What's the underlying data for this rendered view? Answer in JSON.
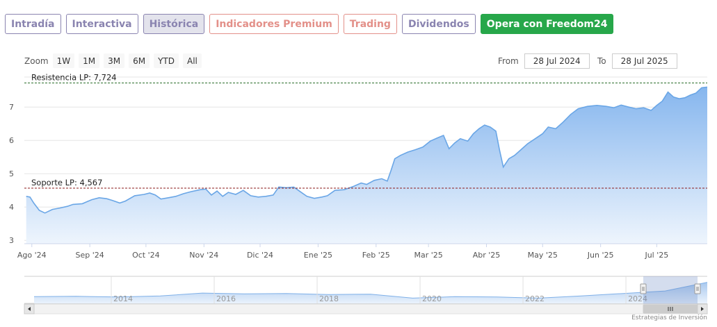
{
  "tabs": [
    {
      "label": "Intradía",
      "style": "c-purple"
    },
    {
      "label": "Interactiva",
      "style": "c-purple"
    },
    {
      "label": "Histórica",
      "style": "c-active"
    },
    {
      "label": "Indicadores Premium",
      "style": "c-red"
    },
    {
      "label": "Trading",
      "style": "c-red"
    },
    {
      "label": "Dividendos",
      "style": "c-purple"
    },
    {
      "label": "Opera con Freedom24",
      "style": "c-green"
    }
  ],
  "zoom": {
    "label": "Zoom",
    "buttons": [
      "1W",
      "1M",
      "3M",
      "6M",
      "YTD",
      "All"
    ]
  },
  "dates": {
    "from_label": "From",
    "from_value": "28 Jul 2024",
    "to_label": "To",
    "to_value": "28 Jul 2025"
  },
  "credit": "Estrategias de Inversión",
  "colors": {
    "line": "#6aa6e6",
    "fill_top": "#86b6ee",
    "fill_bottom": "#eef5fd",
    "resistance": "#2a6e2a",
    "support": "#8b1a1a"
  },
  "chart_data": {
    "type": "area",
    "title": "",
    "ylim": [
      2.9,
      7.9
    ],
    "yticks": [
      3,
      4,
      5,
      6,
      7
    ],
    "xticks": [
      "Ago '24",
      "Sep '24",
      "Oct '24",
      "Nov '24",
      "Dic '24",
      "Ene '25",
      "Feb '25",
      "Mar '25",
      "Abr '25",
      "May '25",
      "Jun '25",
      "Jul '25"
    ],
    "x_range": [
      "2024-07-28",
      "2025-07-28"
    ],
    "series": [
      {
        "points": [
          [
            "2024-07-29",
            4.32
          ],
          [
            "2024-07-31",
            4.3
          ],
          [
            "2024-08-02",
            4.12
          ],
          [
            "2024-08-05",
            3.9
          ],
          [
            "2024-08-08",
            3.82
          ],
          [
            "2024-08-12",
            3.93
          ],
          [
            "2024-08-16",
            3.97
          ],
          [
            "2024-08-20",
            4.02
          ],
          [
            "2024-08-23",
            4.08
          ],
          [
            "2024-08-28",
            4.1
          ],
          [
            "2024-09-02",
            4.22
          ],
          [
            "2024-09-06",
            4.28
          ],
          [
            "2024-09-10",
            4.25
          ],
          [
            "2024-09-13",
            4.2
          ],
          [
            "2024-09-17",
            4.12
          ],
          [
            "2024-09-20",
            4.18
          ],
          [
            "2024-09-25",
            4.34
          ],
          [
            "2024-09-30",
            4.38
          ],
          [
            "2024-10-03",
            4.42
          ],
          [
            "2024-10-06",
            4.36
          ],
          [
            "2024-10-09",
            4.24
          ],
          [
            "2024-10-13",
            4.28
          ],
          [
            "2024-10-17",
            4.32
          ],
          [
            "2024-10-21",
            4.4
          ],
          [
            "2024-10-25",
            4.46
          ],
          [
            "2024-10-30",
            4.52
          ],
          [
            "2024-11-02",
            4.54
          ],
          [
            "2024-11-05",
            4.36
          ],
          [
            "2024-11-08",
            4.48
          ],
          [
            "2024-11-11",
            4.32
          ],
          [
            "2024-11-14",
            4.44
          ],
          [
            "2024-11-18",
            4.38
          ],
          [
            "2024-11-22",
            4.5
          ],
          [
            "2024-11-26",
            4.34
          ],
          [
            "2024-11-30",
            4.3
          ],
          [
            "2024-12-04",
            4.32
          ],
          [
            "2024-12-08",
            4.36
          ],
          [
            "2024-12-11",
            4.6
          ],
          [
            "2024-12-15",
            4.58
          ],
          [
            "2024-12-19",
            4.6
          ],
          [
            "2024-12-22",
            4.48
          ],
          [
            "2024-12-26",
            4.32
          ],
          [
            "2024-12-30",
            4.26
          ],
          [
            "2025-01-03",
            4.3
          ],
          [
            "2025-01-06",
            4.34
          ],
          [
            "2025-01-10",
            4.5
          ],
          [
            "2025-01-15",
            4.52
          ],
          [
            "2025-01-20",
            4.62
          ],
          [
            "2025-01-24",
            4.72
          ],
          [
            "2025-01-27",
            4.68
          ],
          [
            "2025-01-31",
            4.8
          ],
          [
            "2025-02-04",
            4.85
          ],
          [
            "2025-02-07",
            4.78
          ],
          [
            "2025-02-09",
            5.1
          ],
          [
            "2025-02-11",
            5.45
          ],
          [
            "2025-02-14",
            5.55
          ],
          [
            "2025-02-18",
            5.65
          ],
          [
            "2025-02-22",
            5.72
          ],
          [
            "2025-02-26",
            5.8
          ],
          [
            "2025-03-02",
            5.98
          ],
          [
            "2025-03-06",
            6.08
          ],
          [
            "2025-03-09",
            6.15
          ],
          [
            "2025-03-12",
            5.75
          ],
          [
            "2025-03-15",
            5.92
          ],
          [
            "2025-03-18",
            6.05
          ],
          [
            "2025-03-22",
            5.98
          ],
          [
            "2025-03-25",
            6.2
          ],
          [
            "2025-03-28",
            6.35
          ],
          [
            "2025-03-31",
            6.46
          ],
          [
            "2025-04-03",
            6.4
          ],
          [
            "2025-04-06",
            6.28
          ],
          [
            "2025-04-08",
            5.7
          ],
          [
            "2025-04-10",
            5.2
          ],
          [
            "2025-04-13",
            5.45
          ],
          [
            "2025-04-16",
            5.55
          ],
          [
            "2025-04-19",
            5.7
          ],
          [
            "2025-04-23",
            5.9
          ],
          [
            "2025-04-27",
            6.05
          ],
          [
            "2025-05-01",
            6.2
          ],
          [
            "2025-05-04",
            6.4
          ],
          [
            "2025-05-08",
            6.35
          ],
          [
            "2025-05-12",
            6.55
          ],
          [
            "2025-05-16",
            6.78
          ],
          [
            "2025-05-20",
            6.95
          ],
          [
            "2025-05-25",
            7.02
          ],
          [
            "2025-05-30",
            7.05
          ],
          [
            "2025-06-04",
            7.02
          ],
          [
            "2025-06-08",
            6.98
          ],
          [
            "2025-06-12",
            7.06
          ],
          [
            "2025-06-16",
            7.0
          ],
          [
            "2025-06-20",
            6.95
          ],
          [
            "2025-06-24",
            6.98
          ],
          [
            "2025-06-28",
            6.9
          ],
          [
            "2025-07-01",
            7.05
          ],
          [
            "2025-07-04",
            7.18
          ],
          [
            "2025-07-07",
            7.45
          ],
          [
            "2025-07-10",
            7.3
          ],
          [
            "2025-07-13",
            7.25
          ],
          [
            "2025-07-16",
            7.28
          ],
          [
            "2025-07-19",
            7.36
          ],
          [
            "2025-07-22",
            7.42
          ],
          [
            "2025-07-25",
            7.58
          ],
          [
            "2025-07-28",
            7.6
          ]
        ]
      }
    ],
    "annotations": [
      {
        "label": "Resistencia LP: 7,724",
        "value": 7.724,
        "kind": "resistance"
      },
      {
        "label": "Soporte LP: 4,567",
        "value": 4.567,
        "kind": "support"
      }
    ],
    "navigator": {
      "xticks": [
        "2014",
        "2016",
        "2018",
        "2020",
        "2022",
        "2024"
      ],
      "start_year": 2012.5,
      "end_year": 2025.58,
      "values": [
        3.6,
        3.7,
        3.5,
        3.8,
        4.6,
        4.4,
        4.5,
        4.2,
        4.3,
        3.2,
        3.6,
        3.5,
        3.2,
        3.8,
        4.5,
        5.2,
        7.6
      ]
    }
  }
}
